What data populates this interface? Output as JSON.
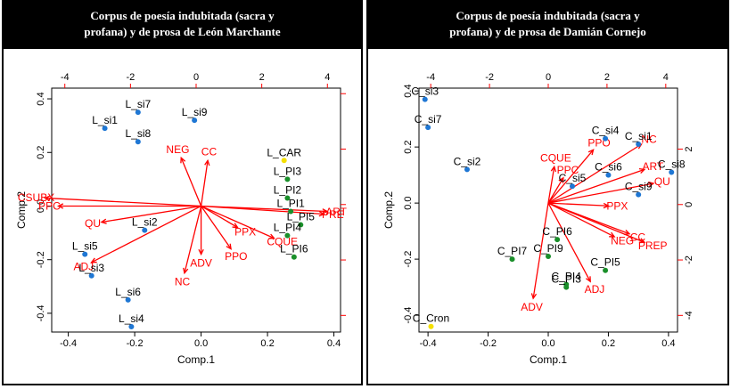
{
  "colors": {
    "black": "#000000",
    "red": "#ff0000",
    "blue": "#1f77d4",
    "green": "#1a8f2a",
    "yellow": "#f5e000"
  },
  "chart_data": [
    {
      "type": "scatter",
      "subtype": "biplot",
      "title_lines": [
        "Corpus de poesía indubitada (sacra y",
        "profana) y de prosa de León Marchante"
      ],
      "xlabel": "Comp.1",
      "ylabel": "Comp.2",
      "xlim": [
        -0.45,
        0.42
      ],
      "ylim": [
        -0.47,
        0.44
      ],
      "x_ticks": [
        -0.4,
        -0.2,
        0.0,
        0.2,
        0.4
      ],
      "x_tick_labels": [
        "-0.4",
        "-0.2",
        "0.0",
        "0.2",
        "0.4"
      ],
      "y_ticks": [
        -0.4,
        -0.2,
        0.0,
        0.2,
        0.4
      ],
      "y_tick_labels": [
        "-0.4",
        "-0.2",
        "0.0",
        "0.2",
        "0.4"
      ],
      "top_ticks": [
        -4,
        -2,
        0,
        2,
        4
      ],
      "top_tick_labels": [
        "-4",
        "-2",
        "0",
        "2",
        "4"
      ],
      "right_ticks": [
        -4,
        -2,
        0,
        2,
        4
      ],
      "right_tick_labels": [],
      "grid": false,
      "points": [
        {
          "label": "L_si7",
          "x": -0.19,
          "y": 0.35,
          "color": "blue"
        },
        {
          "label": "L_si1",
          "x": -0.29,
          "y": 0.29,
          "color": "blue"
        },
        {
          "label": "L_si8",
          "x": -0.19,
          "y": 0.24,
          "color": "blue"
        },
        {
          "label": "L_si9",
          "x": -0.02,
          "y": 0.32,
          "color": "blue"
        },
        {
          "label": "L_si2",
          "x": -0.17,
          "y": -0.09,
          "color": "blue"
        },
        {
          "label": "L_si5",
          "x": -0.35,
          "y": -0.18,
          "color": "blue"
        },
        {
          "label": "L_si3",
          "x": -0.33,
          "y": -0.26,
          "color": "blue"
        },
        {
          "label": "L_si6",
          "x": -0.22,
          "y": -0.35,
          "color": "blue"
        },
        {
          "label": "L_si4",
          "x": -0.21,
          "y": -0.45,
          "color": "blue"
        },
        {
          "label": "L_CAR",
          "x": 0.25,
          "y": 0.17,
          "color": "yellow"
        },
        {
          "label": "L_PI3",
          "x": 0.26,
          "y": 0.1,
          "color": "green"
        },
        {
          "label": "L_PI2",
          "x": 0.26,
          "y": 0.03,
          "color": "green"
        },
        {
          "label": "L_PI1",
          "x": 0.27,
          "y": -0.02,
          "color": "green"
        },
        {
          "label": "L_PI5",
          "x": 0.3,
          "y": -0.07,
          "color": "green"
        },
        {
          "label": "L_PI4",
          "x": 0.26,
          "y": -0.11,
          "color": "green"
        },
        {
          "label": "L_PI6",
          "x": 0.28,
          "y": -0.19,
          "color": "green"
        }
      ],
      "vectors": [
        {
          "label": "CSUBX",
          "x": -0.47,
          "y": 0.03
        },
        {
          "label": "PPC",
          "x": -0.43,
          "y": 0.0
        },
        {
          "label": "QU",
          "x": -0.3,
          "y": -0.06
        },
        {
          "label": "ADJ",
          "x": -0.33,
          "y": -0.21
        },
        {
          "label": "NEG",
          "x": -0.06,
          "y": 0.18
        },
        {
          "label": "CC",
          "x": 0.02,
          "y": 0.17
        },
        {
          "label": "NC",
          "x": -0.05,
          "y": -0.25
        },
        {
          "label": "ADV",
          "x": 0.0,
          "y": -0.18
        },
        {
          "label": "PPO",
          "x": 0.09,
          "y": -0.16
        },
        {
          "label": "PPX",
          "x": 0.11,
          "y": -0.08
        },
        {
          "label": "CQUE",
          "x": 0.22,
          "y": -0.12
        },
        {
          "label": "ART",
          "x": 0.38,
          "y": -0.02
        },
        {
          "label": "PRE",
          "x": 0.37,
          "y": -0.03
        }
      ]
    },
    {
      "type": "scatter",
      "subtype": "biplot",
      "title_lines": [
        "Corpus de poesía indubitada (sacra y",
        "profana) y de prosa de Damián Cornejo"
      ],
      "xlabel": "Comp.1",
      "ylabel": "Comp.2",
      "xlim": [
        -0.43,
        0.43
      ],
      "ylim": [
        -0.46,
        0.41
      ],
      "x_ticks": [
        -0.4,
        -0.2,
        0.0,
        0.2,
        0.4
      ],
      "x_tick_labels": [
        "-0.4",
        "-0.2",
        "0.0",
        "0.2",
        "0.4"
      ],
      "y_ticks": [
        -0.4,
        -0.2,
        0.0,
        0.2,
        0.4
      ],
      "y_tick_labels": [
        "-0.4",
        "-0.2",
        "0.0",
        "0.2",
        "0.4"
      ],
      "top_ticks": [
        -4,
        -2,
        0,
        2,
        4
      ],
      "top_tick_labels": [
        "-4",
        "-2",
        "0",
        "2",
        "4"
      ],
      "right_ticks": [
        -4,
        -2,
        0,
        2
      ],
      "right_tick_labels": [
        "-4",
        "-2",
        "0",
        "2"
      ],
      "grid": false,
      "points": [
        {
          "label": "C_si3",
          "x": -0.41,
          "y": 0.37,
          "color": "blue"
        },
        {
          "label": "C_si7",
          "x": -0.4,
          "y": 0.27,
          "color": "blue"
        },
        {
          "label": "C_si2",
          "x": -0.27,
          "y": 0.12,
          "color": "blue"
        },
        {
          "label": "C_si4",
          "x": 0.19,
          "y": 0.23,
          "color": "blue"
        },
        {
          "label": "C_si1",
          "x": 0.3,
          "y": 0.21,
          "color": "blue"
        },
        {
          "label": "C_si6",
          "x": 0.2,
          "y": 0.1,
          "color": "blue"
        },
        {
          "label": "C_si8",
          "x": 0.41,
          "y": 0.11,
          "color": "blue"
        },
        {
          "label": "C_si5",
          "x": 0.08,
          "y": 0.06,
          "color": "blue"
        },
        {
          "label": "C_si9",
          "x": 0.3,
          "y": 0.03,
          "color": "blue"
        },
        {
          "label": "C_PI6",
          "x": 0.03,
          "y": -0.13,
          "color": "green"
        },
        {
          "label": "C_PI7",
          "x": -0.12,
          "y": -0.2,
          "color": "green"
        },
        {
          "label": "C_PI9",
          "x": 0.0,
          "y": -0.19,
          "color": "green"
        },
        {
          "label": "C_PI4",
          "x": 0.06,
          "y": -0.29,
          "color": "green"
        },
        {
          "label": "C_PI5",
          "x": 0.19,
          "y": -0.24,
          "color": "green"
        },
        {
          "label": "C_PI3",
          "x": 0.06,
          "y": -0.3,
          "color": "green"
        },
        {
          "label": "C_Cron",
          "x": -0.39,
          "y": -0.44,
          "color": "yellow"
        }
      ],
      "vectors": [
        {
          "label": "CQUE",
          "x": 0.02,
          "y": 0.13
        },
        {
          "label": "PPC",
          "x": 0.05,
          "y": 0.09
        },
        {
          "label": "PPO",
          "x": 0.15,
          "y": 0.19
        },
        {
          "label": "NC",
          "x": 0.31,
          "y": 0.21
        },
        {
          "label": "ART",
          "x": 0.32,
          "y": 0.12
        },
        {
          "label": "QU",
          "x": 0.35,
          "y": 0.07
        },
        {
          "label": "PPX",
          "x": 0.2,
          "y": -0.01
        },
        {
          "label": "NEG",
          "x": 0.22,
          "y": -0.12
        },
        {
          "label": "CC",
          "x": 0.27,
          "y": -0.11
        },
        {
          "label": "PREP",
          "x": 0.32,
          "y": -0.14
        },
        {
          "label": "ADJ",
          "x": 0.14,
          "y": -0.28
        },
        {
          "label": "ADV",
          "x": -0.05,
          "y": -0.34
        }
      ]
    }
  ]
}
